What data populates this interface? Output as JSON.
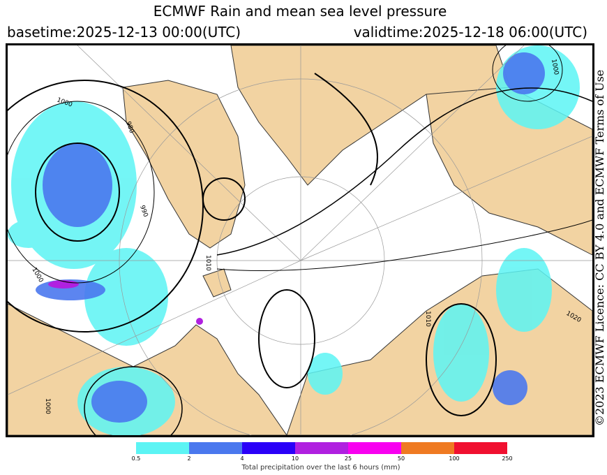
{
  "title": "ECMWF Rain and mean sea level pressure",
  "basetime": "basetime:2025-12-13 00:00(UTC)",
  "validtime": "validtime:2025-12-18 06:00(UTC)",
  "credit": "©2023 ECMWF Licence: CC BY 4.0 and ECMWF Terms of Use",
  "colorbar": {
    "label": "Total precipitation over the last 6 hours (mm)",
    "ticks": [
      "0.5",
      "2",
      "4",
      "10",
      "25",
      "50",
      "100",
      "250"
    ],
    "colors": [
      "#5cf4f4",
      "#4a78ee",
      "#2a00f8",
      "#b020e0",
      "#f800f0",
      "#ef7a22",
      "#f01030"
    ]
  },
  "colors": {
    "land": "#f2d3a2",
    "sea": "#ffffff",
    "isobar": "#000000"
  },
  "isobar_labels": [
    "1000",
    "980",
    "990",
    "1000",
    "1010",
    "1020",
    "1000",
    "1010",
    "1000"
  ]
}
